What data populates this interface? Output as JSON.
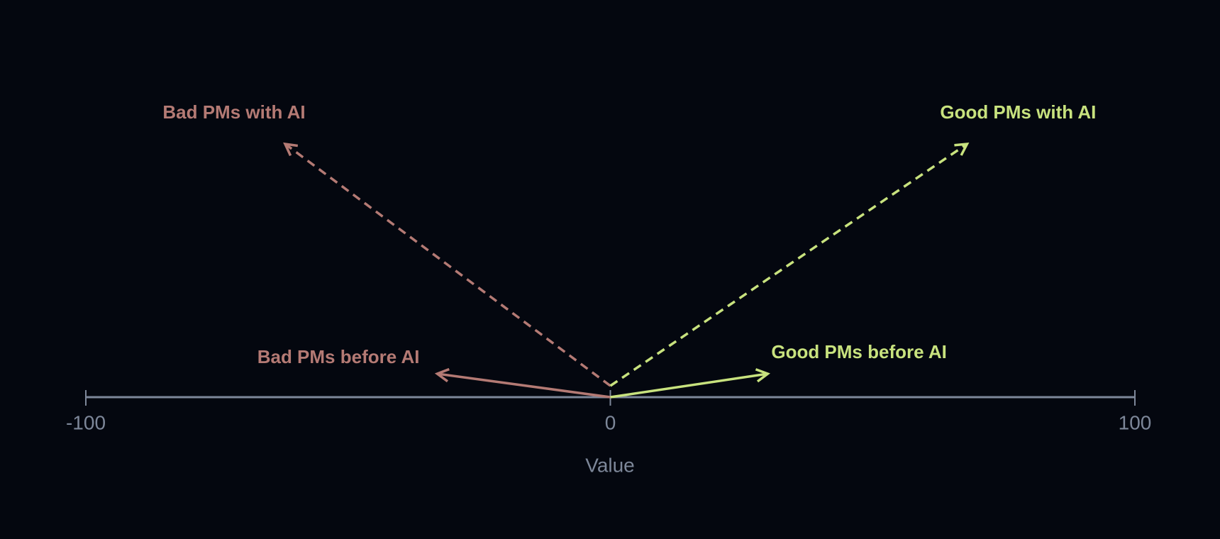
{
  "chart_data": {
    "type": "arrow",
    "x_label": "Value",
    "xlim": [
      -100,
      100
    ],
    "xticks": [
      -100,
      0,
      100
    ],
    "series": [
      {
        "name": "Bad PMs before AI",
        "color": "#b47a74",
        "style": "solid",
        "value": -33
      },
      {
        "name": "Good PMs before AI",
        "color": "#c8e27e",
        "style": "solid",
        "value": 30
      },
      {
        "name": "Bad PMs with AI",
        "color": "#b47a74",
        "style": "dashed",
        "value": -62
      },
      {
        "name": "Good PMs with AI",
        "color": "#c8e27e",
        "style": "dashed",
        "value": 68
      }
    ]
  }
}
